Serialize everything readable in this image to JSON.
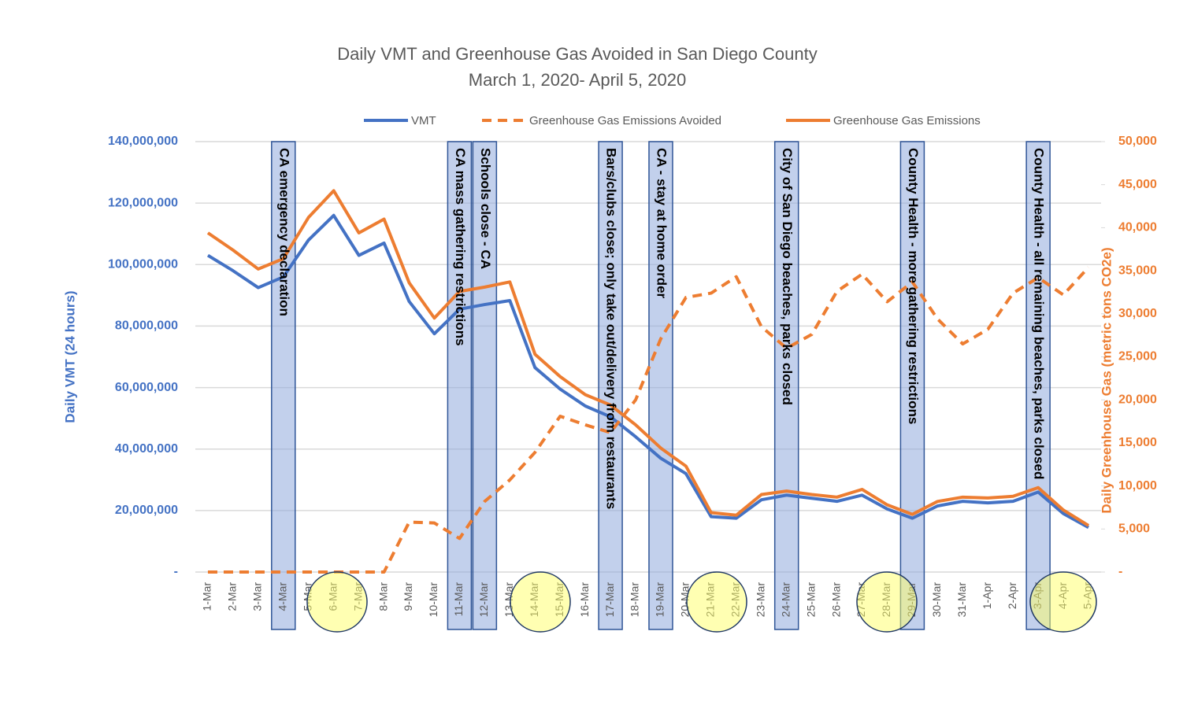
{
  "chart_data": {
    "type": "line",
    "title": "Daily VMT and Greenhouse Gas Avoided in San Diego County",
    "subtitle": "March 1, 2020- April 5, 2020",
    "ylabel": "Daily VMT (24 hours)",
    "y2label": "Daily Greenhouse Gas (metric tons CO2e)",
    "categories": [
      "1-Mar",
      "2-Mar",
      "3-Mar",
      "4-Mar",
      "5-Mar",
      "6-Mar",
      "7-Mar",
      "8-Mar",
      "9-Mar",
      "10-Mar",
      "11-Mar",
      "12-Mar",
      "13-Mar",
      "14-Mar",
      "15-Mar",
      "16-Mar",
      "17-Mar",
      "18-Mar",
      "19-Mar",
      "20-Mar",
      "21-Mar",
      "22-Mar",
      "23-Mar",
      "24-Mar",
      "25-Mar",
      "26-Mar",
      "27-Mar",
      "28-Mar",
      "29-Mar",
      "30-Mar",
      "31-Mar",
      "1-Apr",
      "2-Apr",
      "3-Apr",
      "4-Apr",
      "5-Apr"
    ],
    "series": [
      {
        "name": "VMT",
        "color": "#4472c4",
        "dash": "solid",
        "axis": "y",
        "values": [
          103000000,
          98000000,
          92500000,
          96000000,
          108000000,
          116000000,
          103000000,
          107000000,
          88000000,
          77500000,
          85500000,
          87000000,
          88300000,
          66500000,
          59500000,
          54000000,
          50500000,
          44000000,
          37000000,
          32000000,
          18000000,
          17500000,
          23500000,
          25000000,
          24000000,
          23000000,
          25000000,
          20500000,
          17500000,
          21500000,
          23000000,
          22500000,
          23000000,
          26000000,
          19000000,
          14500000
        ]
      },
      {
        "name": "Greenhouse Gas Emissions Avoided",
        "color": "#ed7d31",
        "dash": "dashed",
        "axis": "y2",
        "values": [
          0,
          0,
          0,
          0,
          0,
          0,
          0,
          0,
          5800,
          5700,
          3900,
          8200,
          10700,
          13900,
          18100,
          17100,
          16200,
          20000,
          27100,
          31900,
          32400,
          34300,
          28500,
          26000,
          27600,
          32600,
          34600,
          31400,
          33700,
          29400,
          26500,
          28200,
          32400,
          34200,
          32200,
          35400
        ]
      },
      {
        "name": "Greenhouse Gas Emissions",
        "color": "#ed7d31",
        "dash": "solid",
        "axis": "y2",
        "values": [
          39400,
          37400,
          35200,
          36400,
          41200,
          44300,
          39400,
          41000,
          33600,
          29500,
          32600,
          33100,
          33700,
          25300,
          22700,
          20600,
          19400,
          17100,
          14400,
          12300,
          6900,
          6600,
          9000,
          9400,
          9000,
          8700,
          9600,
          7800,
          6700,
          8200,
          8700,
          8600,
          8800,
          9800,
          7200,
          5400
        ]
      }
    ],
    "ylim": [
      0,
      140000000
    ],
    "yticks": [
      {
        "value": 0,
        "label": "-"
      },
      {
        "value": 20000000,
        "label": "20,000,000"
      },
      {
        "value": 40000000,
        "label": "40,000,000"
      },
      {
        "value": 60000000,
        "label": "60,000,000"
      },
      {
        "value": 80000000,
        "label": "80,000,000"
      },
      {
        "value": 100000000,
        "label": "100,000,000"
      },
      {
        "value": 120000000,
        "label": "120,000,000"
      },
      {
        "value": 140000000,
        "label": "140,000,000"
      }
    ],
    "y2lim": [
      0,
      50000
    ],
    "y2ticks": [
      {
        "value": 0,
        "label": "-"
      },
      {
        "value": 5000,
        "label": "5,000"
      },
      {
        "value": 10000,
        "label": "10,000"
      },
      {
        "value": 15000,
        "label": "15,000"
      },
      {
        "value": 20000,
        "label": "20,000"
      },
      {
        "value": 25000,
        "label": "25,000"
      },
      {
        "value": 30000,
        "label": "30,000"
      },
      {
        "value": 35000,
        "label": "35,000"
      },
      {
        "value": 40000,
        "label": "40,000"
      },
      {
        "value": 45000,
        "label": "45,000"
      },
      {
        "value": 50000,
        "label": "50,000"
      }
    ],
    "grid": true,
    "legend": "top",
    "annotations": [
      {
        "text": "CA emergency declaration",
        "x": "4-Mar"
      },
      {
        "text": "CA mass gathering restrictions",
        "x": "11-Mar"
      },
      {
        "text": "Schools close - CA",
        "x": "12-Mar"
      },
      {
        "text": "Bars/clubs close; only take out/delivery from restaurants",
        "x": "17-Mar"
      },
      {
        "text": "CA - stay at home order",
        "x": "19-Mar"
      },
      {
        "text": "City of San Diego beaches, parks closed",
        "x": "24-Mar"
      },
      {
        "text": "County Health - more gathering restrictions",
        "x": "29-Mar"
      },
      {
        "text": "County Health - all remaining beaches, parks closed",
        "x": "3-Apr"
      }
    ]
  }
}
